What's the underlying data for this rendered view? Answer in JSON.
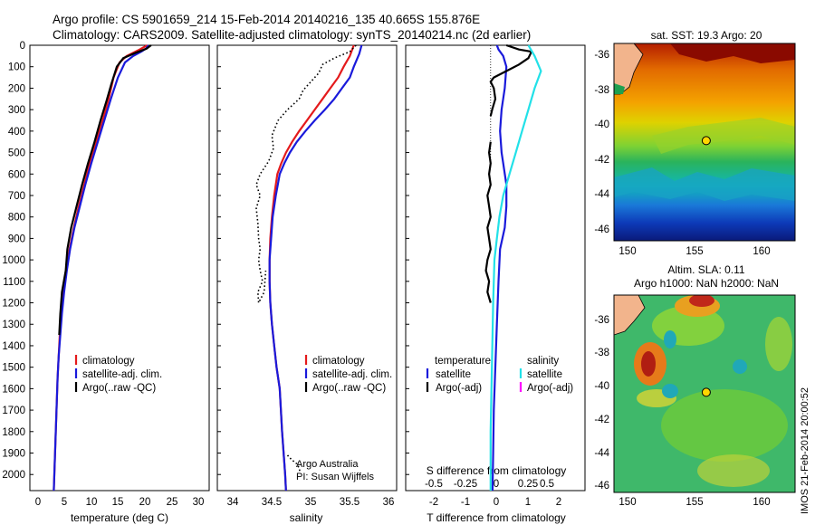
{
  "title_line1": "Argo profile: CS 5901659_214 15-Feb-2014 20140216_135 40.665S 155.876E",
  "title_line2": "Climatology: CARS2009. Satellite-adjusted climatology: synTS_20140214.nc (2d earlier)",
  "colors": {
    "climatology": "#e41a1c",
    "satellite": "#1a1adb",
    "argo": "#000000",
    "salinity_satellite": "#22e1e8",
    "argo_adj_salinity": "#ff00ff",
    "land": "#f2b48c"
  },
  "credits": {
    "line1": "Argo Australia",
    "line2": "PI: Susan Wijffels"
  },
  "timestamp": "IMOS 21-Feb-2014 20:00:52",
  "chart_data": [
    {
      "type": "line",
      "name": "temperature",
      "xlabel": "temperature (deg C)",
      "xlim": [
        -2,
        31
      ],
      "xticks": [
        "0",
        "5",
        "10",
        "15",
        "20",
        "25",
        "30"
      ],
      "ylim": [
        2075,
        0
      ],
      "yticks": [
        "0",
        "100",
        "200",
        "300",
        "400",
        "500",
        "600",
        "700",
        "800",
        "900",
        "1000",
        "1100",
        "1200",
        "1300",
        "1400",
        "1500",
        "1600",
        "1700",
        "1800",
        "1900",
        "2000"
      ],
      "legend": [
        "climatology",
        "satellite-adj. clim.",
        "Argo(..raw -QC)"
      ],
      "series": [
        {
          "name": "climatology",
          "points": [
            [
              19.6,
              0
            ],
            [
              18.2,
              20
            ],
            [
              15.8,
              50
            ],
            [
              14.5,
              80
            ],
            [
              13.4,
              150
            ],
            [
              12.5,
              250
            ],
            [
              11.4,
              350
            ],
            [
              10.2,
              450
            ],
            [
              9.0,
              550
            ],
            [
              8.0,
              650
            ],
            [
              7.0,
              750
            ],
            [
              6.1,
              850
            ],
            [
              5.3,
              950
            ],
            [
              4.7,
              1050
            ],
            [
              4.2,
              1150
            ],
            [
              3.8,
              1250
            ],
            [
              3.5,
              1350
            ],
            [
              3.3,
              1450
            ],
            [
              3.1,
              1550
            ],
            [
              2.9,
              1700
            ],
            [
              2.7,
              1850
            ],
            [
              2.5,
              2000
            ],
            [
              2.4,
              2075
            ]
          ]
        },
        {
          "name": "satellite",
          "points": [
            [
              19.8,
              0
            ],
            [
              19.4,
              15
            ],
            [
              18.5,
              30
            ],
            [
              17.0,
              50
            ],
            [
              15.5,
              80
            ],
            [
              14.2,
              150
            ],
            [
              12.9,
              250
            ],
            [
              11.7,
              350
            ],
            [
              10.5,
              450
            ],
            [
              9.3,
              550
            ],
            [
              8.2,
              650
            ],
            [
              7.2,
              750
            ],
            [
              6.2,
              850
            ],
            [
              5.4,
              950
            ],
            [
              4.8,
              1050
            ],
            [
              4.3,
              1150
            ],
            [
              3.9,
              1250
            ],
            [
              3.6,
              1350
            ],
            [
              3.3,
              1450
            ],
            [
              3.1,
              1550
            ],
            [
              2.9,
              1700
            ],
            [
              2.7,
              1850
            ],
            [
              2.5,
              2000
            ],
            [
              2.4,
              2075
            ]
          ]
        },
        {
          "name": "argo",
          "points": [
            [
              20.3,
              0
            ],
            [
              19.5,
              15
            ],
            [
              17.5,
              35
            ],
            [
              15.2,
              60
            ],
            [
              14.0,
              100
            ],
            [
              13.0,
              180
            ],
            [
              12.1,
              260
            ],
            [
              11.0,
              350
            ],
            [
              9.9,
              450
            ],
            [
              8.7,
              550
            ],
            [
              7.6,
              650
            ],
            [
              6.6,
              750
            ],
            [
              5.6,
              850
            ],
            [
              4.9,
              950
            ],
            [
              4.6,
              1050
            ],
            [
              3.9,
              1150
            ],
            [
              3.6,
              1250
            ],
            [
              3.4,
              1350
            ]
          ]
        }
      ]
    },
    {
      "type": "line",
      "name": "salinity",
      "xlabel": "salinity",
      "xlim": [
        33.8,
        36.1
      ],
      "xticks": [
        "34",
        "34.5",
        "35",
        "35.5",
        "36"
      ],
      "ylim": [
        2075,
        0
      ],
      "legend": [
        "climatology",
        "satellite-adj. clim.",
        "Argo(..raw -QC)"
      ],
      "series": [
        {
          "name": "climatology",
          "points": [
            [
              35.55,
              0
            ],
            [
              35.5,
              50
            ],
            [
              35.42,
              100
            ],
            [
              35.35,
              150
            ],
            [
              35.25,
              200
            ],
            [
              35.15,
              250
            ],
            [
              35.05,
              300
            ],
            [
              34.95,
              350
            ],
            [
              34.85,
              400
            ],
            [
              34.76,
              450
            ],
            [
              34.68,
              500
            ],
            [
              34.62,
              550
            ],
            [
              34.57,
              600
            ],
            [
              34.53,
              700
            ],
            [
              34.5,
              800
            ],
            [
              34.48,
              900
            ],
            [
              34.47,
              1000
            ],
            [
              34.47,
              1100
            ],
            [
              34.48,
              1200
            ],
            [
              34.5,
              1300
            ],
            [
              34.53,
              1400
            ],
            [
              34.56,
              1500
            ],
            [
              34.6,
              1600
            ],
            [
              34.63,
              1800
            ],
            [
              34.67,
              2000
            ],
            [
              34.68,
              2075
            ]
          ]
        },
        {
          "name": "satellite",
          "points": [
            [
              35.65,
              0
            ],
            [
              35.62,
              40
            ],
            [
              35.55,
              100
            ],
            [
              35.5,
              150
            ],
            [
              35.4,
              200
            ],
            [
              35.3,
              250
            ],
            [
              35.18,
              300
            ],
            [
              35.05,
              350
            ],
            [
              34.93,
              400
            ],
            [
              34.82,
              450
            ],
            [
              34.73,
              500
            ],
            [
              34.66,
              550
            ],
            [
              34.6,
              600
            ],
            [
              34.55,
              700
            ],
            [
              34.51,
              800
            ],
            [
              34.49,
              900
            ],
            [
              34.47,
              1000
            ],
            [
              34.47,
              1100
            ],
            [
              34.48,
              1200
            ],
            [
              34.5,
              1300
            ],
            [
              34.53,
              1400
            ],
            [
              34.56,
              1500
            ],
            [
              34.6,
              1600
            ],
            [
              34.63,
              1800
            ],
            [
              34.67,
              2000
            ],
            [
              34.68,
              2075
            ]
          ]
        },
        {
          "name": "argo",
          "points": [
            [
              35.58,
              0
            ],
            [
              35.5,
              30
            ],
            [
              35.3,
              60
            ],
            [
              35.15,
              90
            ],
            [
              35.1,
              130
            ],
            [
              35.0,
              170
            ],
            [
              34.9,
              210
            ],
            [
              34.85,
              250
            ],
            [
              34.7,
              300
            ],
            [
              34.58,
              350
            ],
            [
              34.5,
              420
            ],
            [
              34.52,
              480
            ],
            [
              34.46,
              540
            ],
            [
              34.35,
              600
            ],
            [
              34.3,
              650
            ],
            [
              34.35,
              700
            ],
            [
              34.3,
              760
            ],
            [
              34.32,
              830
            ],
            [
              34.33,
              900
            ],
            [
              34.35,
              950
            ],
            [
              34.33,
              1000
            ],
            [
              34.35,
              1050
            ],
            [
              34.38,
              1100
            ],
            [
              34.32,
              1150
            ],
            [
              34.33,
              1200
            ],
            [
              34.4,
              1150
            ],
            [
              34.42,
              1050
            ]
          ]
        },
        {
          "name": "argo-deep",
          "points": [
            [
              34.7,
              1910
            ],
            [
              34.75,
              1930
            ],
            [
              34.82,
              1950
            ],
            [
              34.85,
              1970
            ],
            [
              34.86,
              1990
            ]
          ]
        }
      ]
    },
    {
      "type": "line",
      "name": "difference",
      "xlabel": "T difference from climatology",
      "xlabel2": "S difference from climatology",
      "xlim": [
        -2.7,
        3.0
      ],
      "xticks": [
        "-2",
        "-1",
        "0",
        "1",
        "2"
      ],
      "xlim2": [
        -0.675,
        0.75
      ],
      "xticks2": [
        "-0.5",
        "-0.25",
        "0",
        "0.25",
        "0.5"
      ],
      "ylim": [
        2075,
        0
      ],
      "legend_temperature": {
        "header": "temperature",
        "items": [
          "satellite",
          "Argo(-adj)"
        ]
      },
      "legend_salinity": {
        "header": "salinity",
        "items": [
          "satellite",
          "Argo(-adj)"
        ]
      },
      "series": [
        {
          "name": "T satellite",
          "points": [
            [
              0.2,
              0
            ],
            [
              0.25,
              20
            ],
            [
              0.4,
              50
            ],
            [
              0.5,
              100
            ],
            [
              0.45,
              200
            ],
            [
              0.35,
              300
            ],
            [
              0.3,
              400
            ],
            [
              0.35,
              500
            ],
            [
              0.4,
              550
            ],
            [
              0.5,
              650
            ],
            [
              0.5,
              750
            ],
            [
              0.45,
              850
            ],
            [
              0.3,
              950
            ],
            [
              0.25,
              1100
            ],
            [
              0.2,
              1300
            ],
            [
              0.15,
              1500
            ],
            [
              0.1,
              1700
            ],
            [
              0.08,
              1900
            ],
            [
              0.06,
              2075
            ]
          ]
        },
        {
          "name": "T argo",
          "points": [
            [
              0.5,
              0
            ],
            [
              0.9,
              20
            ],
            [
              1.3,
              30
            ],
            [
              1.2,
              60
            ],
            [
              0.9,
              90
            ],
            [
              0.5,
              120
            ],
            [
              0.1,
              150
            ],
            [
              0.0,
              170
            ],
            [
              0.1,
              200
            ],
            [
              0.15,
              250
            ],
            [
              0.05,
              300
            ],
            [
              0.0,
              330
            ]
          ]
        },
        {
          "name": "T argo deep",
          "points": [
            [
              0.0,
              450
            ],
            [
              -0.05,
              500
            ],
            [
              0.0,
              550
            ],
            [
              -0.05,
              600
            ],
            [
              0.0,
              650
            ],
            [
              -0.1,
              700
            ],
            [
              -0.05,
              750
            ],
            [
              0.0,
              800
            ],
            [
              -0.1,
              850
            ],
            [
              -0.05,
              900
            ],
            [
              0.0,
              950
            ],
            [
              -0.1,
              1000
            ],
            [
              -0.15,
              1050
            ],
            [
              -0.05,
              1100
            ],
            [
              -0.1,
              1150
            ],
            [
              0.0,
              1200
            ]
          ]
        },
        {
          "name": "S satellite",
          "points": [
            [
              0.3,
              0
            ],
            [
              0.35,
              50
            ],
            [
              0.4,
              120
            ],
            [
              0.35,
              200
            ],
            [
              0.3,
              300
            ],
            [
              0.25,
              400
            ],
            [
              0.2,
              500
            ],
            [
              0.15,
              600
            ],
            [
              0.1,
              700
            ],
            [
              0.07,
              800
            ],
            [
              0.05,
              900
            ],
            [
              0.03,
              1000
            ],
            [
              0.02,
              1200
            ],
            [
              0.01,
              1500
            ],
            [
              0.0,
              1800
            ],
            [
              0.0,
              2075
            ]
          ]
        }
      ]
    },
    {
      "type": "heatmap",
      "name": "sst-map",
      "title": "sat. SST: 19.3 Argo: 20",
      "xlim": [
        149,
        162.5
      ],
      "ylim": [
        -46.5,
        -35
      ],
      "xticks": [
        "150",
        "155",
        "160"
      ],
      "yticks": [
        "-36",
        "-38",
        "-40",
        "-42",
        "-44",
        "-46"
      ],
      "float_position": [
        155.876,
        -40.665
      ]
    },
    {
      "type": "heatmap",
      "name": "sla-map",
      "title_line1": "Altim. SLA: 0.11",
      "title_line2": "Argo h1000: NaN h2000: NaN",
      "xlim": [
        149,
        162.5
      ],
      "ylim": [
        -46.5,
        -35
      ],
      "xticks": [
        "150",
        "155",
        "160"
      ],
      "yticks": [
        "-36",
        "-38",
        "-40",
        "-42",
        "-44",
        "-46"
      ],
      "float_position": [
        155.876,
        -40.665
      ]
    }
  ]
}
